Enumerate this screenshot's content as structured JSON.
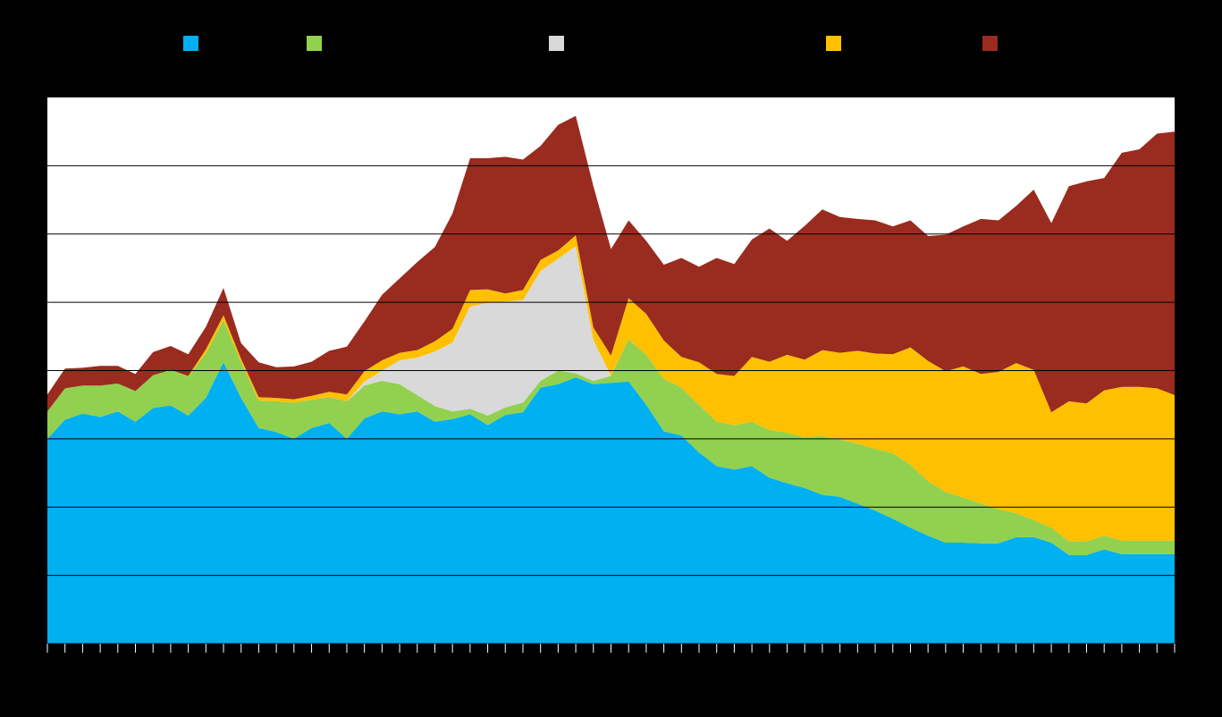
{
  "chart_data": {
    "type": "area",
    "stacked": true,
    "title": "",
    "xlabel": "",
    "ylabel": "",
    "ylim": [
      0,
      8
    ],
    "yticks": [
      1,
      2,
      3,
      4,
      5,
      6,
      7
    ],
    "grid": true,
    "legend_position": "top",
    "x": [
      1,
      2,
      3,
      4,
      5,
      6,
      7,
      8,
      9,
      10,
      11,
      12,
      13,
      14,
      15,
      16,
      17,
      18,
      19,
      20,
      21,
      22,
      23,
      24,
      25,
      26,
      27,
      28,
      29,
      30,
      31,
      32,
      33,
      34,
      35,
      36,
      37,
      38,
      39,
      40,
      41,
      42,
      43,
      44,
      45,
      46,
      47,
      48,
      49,
      50,
      51,
      52,
      53,
      54,
      55,
      56,
      57,
      58,
      59,
      60,
      61,
      62,
      63,
      64,
      65
    ],
    "series": [
      {
        "name": "",
        "color": "#00B0F0",
        "values": [
          3.0,
          3.28,
          3.37,
          3.32,
          3.4,
          3.25,
          3.45,
          3.49,
          3.34,
          3.6,
          4.12,
          3.6,
          3.16,
          3.1,
          3.0,
          3.16,
          3.23,
          3.0,
          3.3,
          3.4,
          3.36,
          3.4,
          3.25,
          3.29,
          3.36,
          3.2,
          3.35,
          3.39,
          3.75,
          3.8,
          3.9,
          3.8,
          3.82,
          3.84,
          3.5,
          3.11,
          3.05,
          2.8,
          2.6,
          2.55,
          2.6,
          2.43,
          2.35,
          2.28,
          2.18,
          2.15,
          2.05,
          1.95,
          1.83,
          1.7,
          1.58,
          1.48,
          1.48,
          1.47,
          1.47,
          1.56,
          1.56,
          1.48,
          1.3,
          1.3,
          1.38,
          1.31,
          1.31,
          1.31,
          1.31
        ]
      },
      {
        "name": "",
        "color": "#92D050",
        "values": [
          0.4,
          0.46,
          0.41,
          0.46,
          0.41,
          0.45,
          0.48,
          0.52,
          0.57,
          0.65,
          0.62,
          0.52,
          0.4,
          0.45,
          0.53,
          0.41,
          0.38,
          0.55,
          0.48,
          0.45,
          0.44,
          0.24,
          0.23,
          0.11,
          0.08,
          0.14,
          0.11,
          0.14,
          0.1,
          0.2,
          0.06,
          0.05,
          0.1,
          0.62,
          0.73,
          0.77,
          0.7,
          0.7,
          0.65,
          0.65,
          0.65,
          0.7,
          0.74,
          0.74,
          0.86,
          0.84,
          0.88,
          0.9,
          0.96,
          0.92,
          0.8,
          0.74,
          0.66,
          0.58,
          0.5,
          0.35,
          0.25,
          0.22,
          0.2,
          0.2,
          0.2,
          0.2,
          0.2,
          0.2,
          0.2
        ]
      },
      {
        "name": "",
        "color": "#D9D9D9",
        "values": [
          0,
          0,
          0,
          0,
          0,
          0,
          0,
          0,
          0,
          0,
          0,
          0,
          0,
          0,
          0,
          0,
          0,
          0,
          0.06,
          0.15,
          0.35,
          0.55,
          0.8,
          1.01,
          1.5,
          1.65,
          1.55,
          1.5,
          1.61,
          1.64,
          1.86,
          0.6,
          0,
          0,
          0,
          0,
          0,
          0,
          0,
          0,
          0,
          0,
          0,
          0,
          0,
          0,
          0,
          0,
          0,
          0,
          0,
          0,
          0,
          0,
          0,
          0,
          0,
          0,
          0,
          0,
          0,
          0,
          0,
          0,
          0
        ]
      },
      {
        "name": "",
        "color": "#FFC000",
        "values": [
          0,
          0,
          0,
          0,
          0,
          0,
          0,
          0,
          0.01,
          0.06,
          0.07,
          0.05,
          0.05,
          0.05,
          0.05,
          0.06,
          0.08,
          0.1,
          0.15,
          0.15,
          0.11,
          0.11,
          0.15,
          0.2,
          0.24,
          0.2,
          0.12,
          0.15,
          0.16,
          0.12,
          0.16,
          0.18,
          0.3,
          0.6,
          0.6,
          0.56,
          0.45,
          0.62,
          0.7,
          0.72,
          0.95,
          1.0,
          1.14,
          1.14,
          1.26,
          1.27,
          1.36,
          1.4,
          1.45,
          1.72,
          1.76,
          1.77,
          1.92,
          1.9,
          2.01,
          2.2,
          2.2,
          1.69,
          2.05,
          2.02,
          2.13,
          2.25,
          2.25,
          2.23,
          2.13
        ]
      },
      {
        "name": "",
        "color": "#9A2B1F",
        "values": [
          0.25,
          0.29,
          0.26,
          0.29,
          0.26,
          0.25,
          0.34,
          0.35,
          0.32,
          0.33,
          0.4,
          0.23,
          0.51,
          0.45,
          0.48,
          0.5,
          0.6,
          0.7,
          0.73,
          0.96,
          1.09,
          1.29,
          1.38,
          1.69,
          1.93,
          1.92,
          2.0,
          1.91,
          1.67,
          1.84,
          1.75,
          2.07,
          1.56,
          1.14,
          1.07,
          1.11,
          1.45,
          1.4,
          1.7,
          1.64,
          1.72,
          1.95,
          1.67,
          1.96,
          2.06,
          1.99,
          1.93,
          1.95,
          1.87,
          1.86,
          1.83,
          2.0,
          2.05,
          2.27,
          2.22,
          2.3,
          2.64,
          2.77,
          3.15,
          3.25,
          3.11,
          3.43,
          3.48,
          3.73,
          3.86
        ]
      }
    ]
  }
}
